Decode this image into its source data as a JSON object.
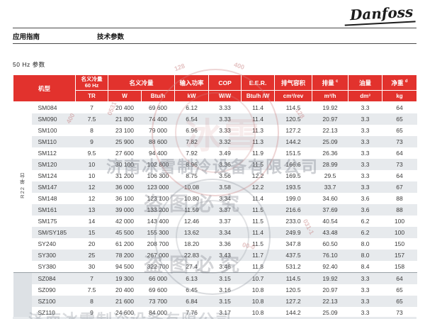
{
  "brand": {
    "logo_text": "Danfoss"
  },
  "page_header": {
    "left_title": "应用指南",
    "section_title": "技术参数"
  },
  "subtitle": "50 Hz 参数",
  "table": {
    "header": {
      "model": "机型",
      "cap60_line1": "名义冷量",
      "cap60_line2": "60 Hz",
      "cap60_unit": "TR",
      "cap": "名义冷量",
      "cap_unit_w": "W",
      "cap_unit_btu": "Btu/h",
      "power": "输入功率",
      "power_unit": "kW",
      "cop": "COP",
      "cop_unit": "W/W",
      "eer": "E.E.R.",
      "eer_unit": "Btu/h /W",
      "swept": "排气容积",
      "swept_unit": "cm³/rev",
      "disp": "排量",
      "disp_sup": "c",
      "disp_unit": "m³/h",
      "oil": "油量",
      "oil_unit": "dm³",
      "weight": "净重",
      "weight_sup": "d",
      "weight_unit": "kg"
    },
    "sections": [
      {
        "gutter_label": "R22 单台",
        "rows": [
          [
            "SM084",
            "7",
            "20 400",
            "69 600",
            "6.12",
            "3.33",
            "11.4",
            "114.5",
            "19.92",
            "3.3",
            "64"
          ],
          [
            "SM090",
            "7.5",
            "21 800",
            "74 400",
            "6.54",
            "3.33",
            "11.4",
            "120.5",
            "20.97",
            "3.3",
            "65"
          ],
          [
            "SM100",
            "8",
            "23 100",
            "79 000",
            "6.96",
            "3.33",
            "11.3",
            "127.2",
            "22.13",
            "3.3",
            "65"
          ],
          [
            "SM110",
            "9",
            "25 900",
            "88 600",
            "7.82",
            "3.32",
            "11.3",
            "144.2",
            "25.09",
            "3.3",
            "73"
          ],
          [
            "SM112",
            "9.5",
            "27 600",
            "94 400",
            "7.92",
            "3.49",
            "11.9",
            "151.5",
            "26.36",
            "3.3",
            "64"
          ],
          [
            "SM120",
            "10",
            "30 100",
            "102 800",
            "8.96",
            "3.36",
            "11.5",
            "166.6",
            "28.99",
            "3.3",
            "73"
          ],
          [
            "SM124",
            "10",
            "31 200",
            "106 300",
            "8.75",
            "3.56",
            "12.2",
            "169.5",
            "29.5",
            "3.3",
            "64"
          ],
          [
            "SM147",
            "12",
            "36 000",
            "123 000",
            "10.08",
            "3.58",
            "12.2",
            "193.5",
            "33.7",
            "3.3",
            "67"
          ],
          [
            "SM148",
            "12",
            "36 100",
            "123 100",
            "10.80",
            "3.34",
            "11.4",
            "199.0",
            "34.60",
            "3.6",
            "88"
          ],
          [
            "SM161",
            "13",
            "39 000",
            "133 200",
            "11.59",
            "3.37",
            "11.5",
            "216.6",
            "37.69",
            "3.6",
            "88"
          ],
          [
            "SM175",
            "14",
            "42 000",
            "143 400",
            "12.46",
            "3.37",
            "11.5",
            "233.0",
            "40.54",
            "6.2",
            "100"
          ],
          [
            "SM/SY185",
            "15",
            "45 500",
            "155 300",
            "13.62",
            "3.34",
            "11.4",
            "249.9",
            "43.48",
            "6.2",
            "100"
          ],
          [
            "SY240",
            "20",
            "61 200",
            "208 700",
            "18.20",
            "3.36",
            "11.5",
            "347.8",
            "60.50",
            "8.0",
            "150"
          ],
          [
            "SY300",
            "25",
            "78 200",
            "267 000",
            "22.83",
            "3.43",
            "11.7",
            "437.5",
            "76.10",
            "8.0",
            "157"
          ],
          [
            "SY380",
            "30",
            "94 500",
            "322 700",
            "27.4",
            "3.46",
            "11.8",
            "531.2",
            "92.40",
            "8.4",
            "158"
          ]
        ]
      },
      {
        "gutter_label": "",
        "rows": [
          [
            "SZ084",
            "7",
            "19 300",
            "66 000",
            "6.13",
            "3.15",
            "10.7",
            "114.5",
            "19.92",
            "3.3",
            "64"
          ],
          [
            "SZ090",
            "7.5",
            "20 400",
            "69 600",
            "6.45",
            "3.16",
            "10.8",
            "120.5",
            "20.97",
            "3.3",
            "65"
          ],
          [
            "SZ100",
            "8",
            "21 600",
            "73 700",
            "6.84",
            "3.15",
            "10.8",
            "127.2",
            "22.13",
            "3.3",
            "65"
          ],
          [
            "SZ110",
            "9",
            "24 600",
            "84 000",
            "7.76",
            "3.17",
            "10.8",
            "144.2",
            "25.09",
            "3.3",
            "73"
          ]
        ]
      }
    ]
  },
  "watermark": {
    "company": "济南冰雪制冷设备有限公司",
    "warning": "盗图必究",
    "stamp_text": "冰雪",
    "fragments": [
      "128",
      "400",
      "0531",
      "00-0",
      "031-1"
    ]
  }
}
